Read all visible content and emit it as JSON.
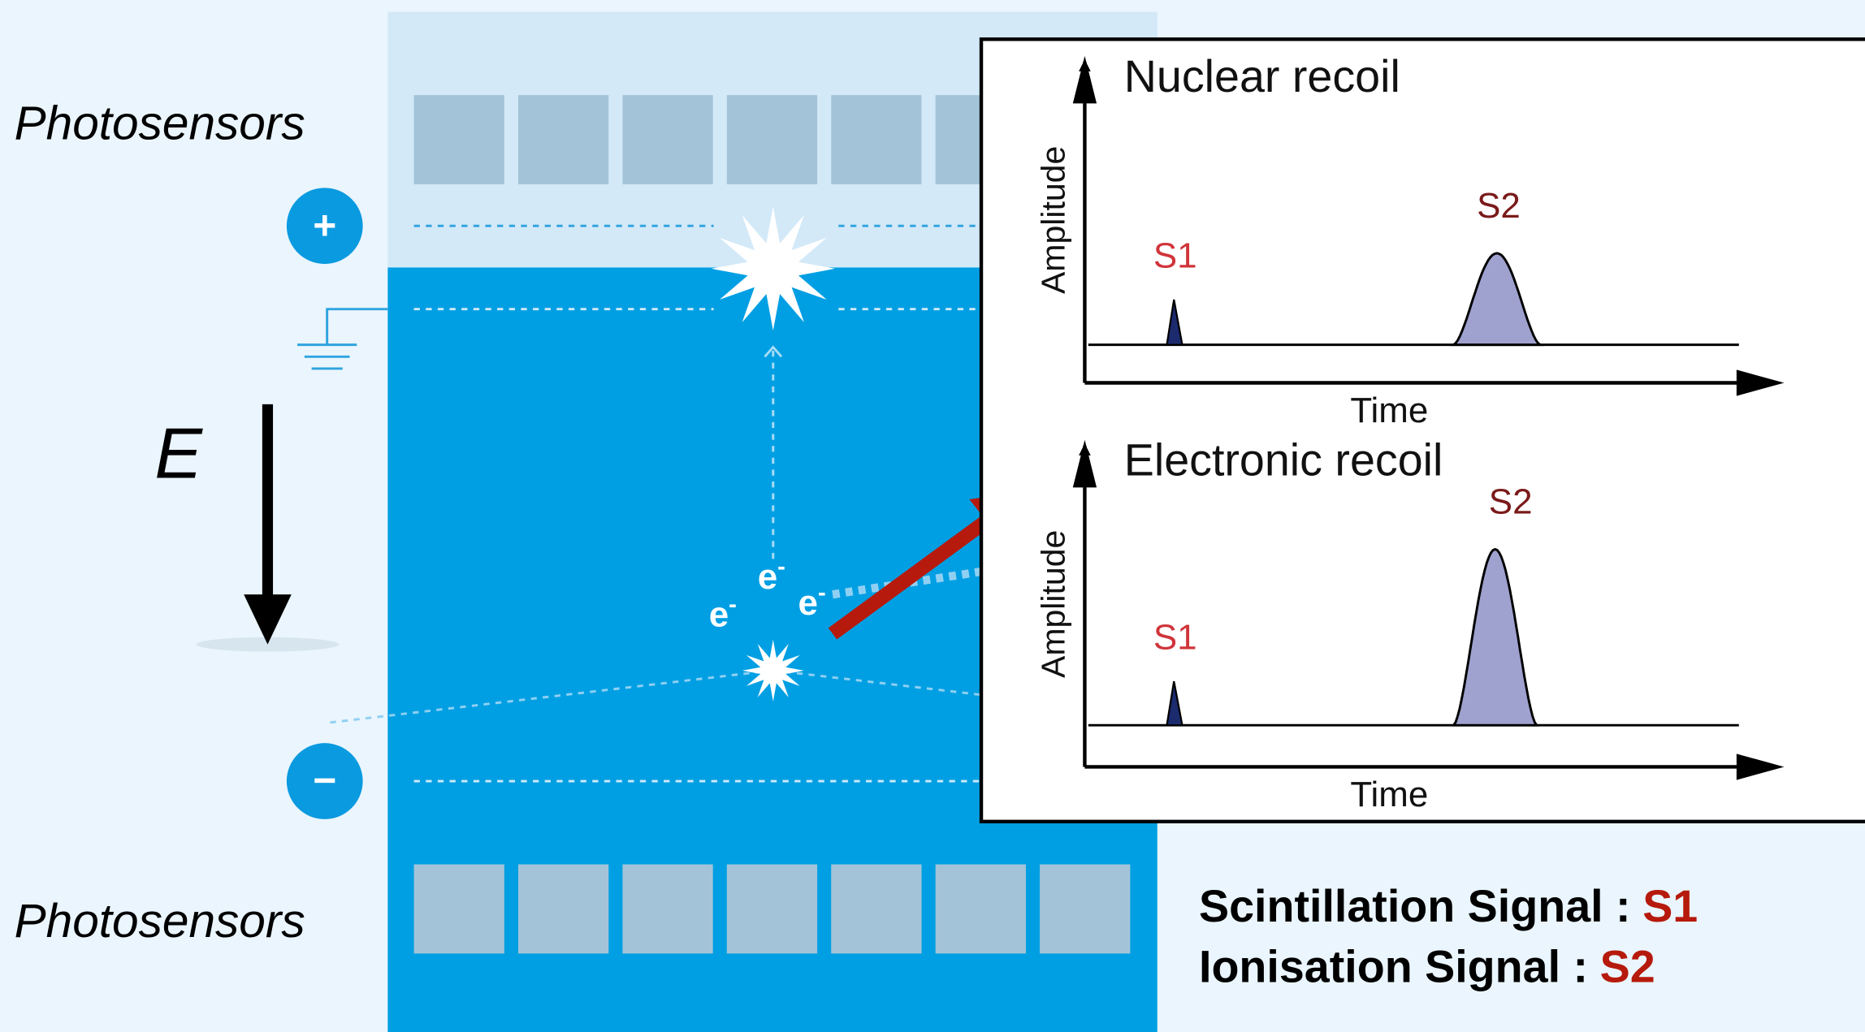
{
  "detector": {
    "top_label": "Photosensors",
    "bottom_label": "Photosensors",
    "anode": "+",
    "cathode": "−",
    "field_label": "E",
    "electrons": [
      {
        "symbol": "e",
        "charge": "-"
      },
      {
        "symbol": "e",
        "charge": "-"
      },
      {
        "symbol": "e",
        "charge": "-"
      }
    ]
  },
  "panels": [
    {
      "title": "Nuclear recoil",
      "y_label": "Amplitude",
      "x_label": "Time",
      "s1": "S1",
      "s2": "S2"
    },
    {
      "title": "Electronic recoil",
      "y_label": "Amplitude",
      "x_label": "Time",
      "s1": "S1",
      "s2": "S2"
    }
  ],
  "legend": [
    {
      "text": "Scintillation Signal :",
      "signal": "S1"
    },
    {
      "text": "Ionisation Signal :",
      "signal": "S2"
    }
  ]
}
